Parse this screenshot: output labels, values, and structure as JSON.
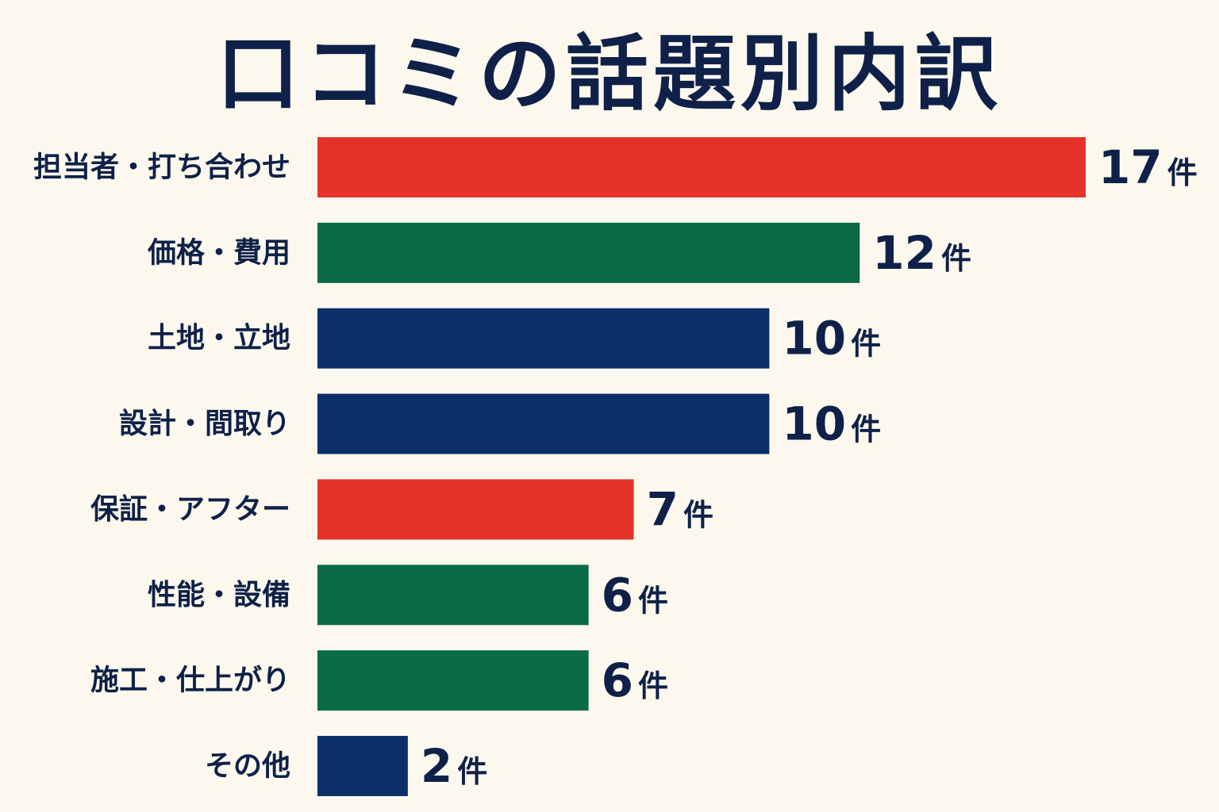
{
  "chart_data": {
    "type": "bar",
    "orientation": "horizontal",
    "title": "口コミの話題別内訳",
    "unit": "件",
    "categories": [
      "担当者・打ち合わせ",
      "価格・費用",
      "土地・立地",
      "設計・間取り",
      "保証・アフター",
      "性能・設備",
      "施工・仕上がり",
      "その他"
    ],
    "values": [
      17,
      12,
      10,
      10,
      7,
      6,
      6,
      2
    ],
    "colors": [
      "#e5322a",
      "#0b6b47",
      "#0b2f6b",
      "#0b2f6b",
      "#e5322a",
      "#0b6b47",
      "#0b6b47",
      "#0b2f6b"
    ],
    "grid": false,
    "legend": "none",
    "xlim": [
      0,
      17
    ]
  }
}
